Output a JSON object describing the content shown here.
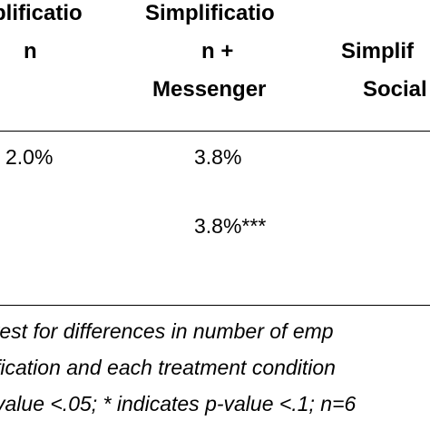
{
  "table": {
    "headers": {
      "col1": [
        "plificatio",
        "n"
      ],
      "col2": [
        "Simplificatio",
        "n +",
        "Messenger"
      ],
      "col3": [
        "Simplif",
        "Social"
      ]
    },
    "rows": [
      {
        "col1": "2.0%",
        "col2": "3.8%"
      },
      {
        "col1": "",
        "col2": "3.8%***"
      }
    ]
  },
  "notes": {
    "line1": "test for differences in number of emp",
    "line2": "fication and each treatment condition",
    "line3": "value <.05; * indicates p-value <.1; n=6"
  }
}
